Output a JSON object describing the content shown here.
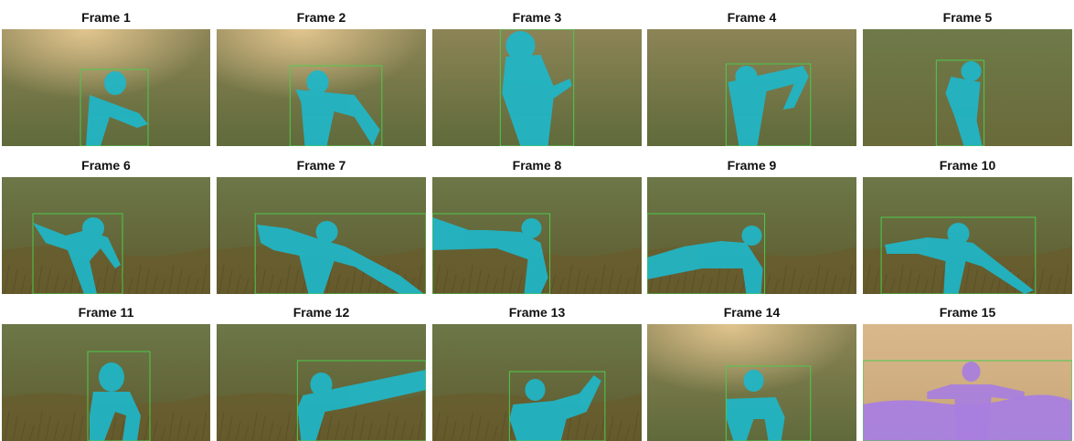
{
  "frames": [
    {
      "title": "Frame 1",
      "scene": "surface-sun",
      "mask": "cyan",
      "pose": "down-diag",
      "box_color": "#4ec94e"
    },
    {
      "title": "Frame 2",
      "scene": "surface-sun",
      "mask": "cyan",
      "pose": "down-arms",
      "box_color": "#4ec94e"
    },
    {
      "title": "Frame 3",
      "scene": "surface",
      "mask": "cyan",
      "pose": "overhead",
      "box_color": "#4ec94e"
    },
    {
      "title": "Frame 4",
      "scene": "surface",
      "mask": "cyan",
      "pose": "reach",
      "box_color": "#4ec94e"
    },
    {
      "title": "Frame 5",
      "scene": "mid",
      "mask": "cyan",
      "pose": "down-small",
      "box_color": "#4ec94e"
    },
    {
      "title": "Frame 6",
      "scene": "seabed",
      "mask": "cyan",
      "pose": "swim-left",
      "box_color": "#4ec94e"
    },
    {
      "title": "Frame 7",
      "scene": "seabed",
      "mask": "cyan",
      "pose": "swim-wide",
      "box_color": "#4ec94e"
    },
    {
      "title": "Frame 8",
      "scene": "seabed",
      "mask": "cyan",
      "pose": "swim-long",
      "box_color": "#4ec94e"
    },
    {
      "title": "Frame 9",
      "scene": "seabed",
      "mask": "cyan",
      "pose": "swim-long2",
      "box_color": "#4ec94e"
    },
    {
      "title": "Frame 10",
      "scene": "seabed",
      "mask": "cyan",
      "pose": "swim-front",
      "box_color": "#4ec94e"
    },
    {
      "title": "Frame 11",
      "scene": "seabed",
      "mask": "cyan",
      "pose": "face-front",
      "box_color": "#4ec94e"
    },
    {
      "title": "Frame 12",
      "scene": "seabed",
      "mask": "cyan",
      "pose": "arm-out",
      "box_color": "#4ec94e"
    },
    {
      "title": "Frame 13",
      "scene": "seabed",
      "mask": "cyan",
      "pose": "wave",
      "box_color": "#4ec94e"
    },
    {
      "title": "Frame 14",
      "scene": "surface-sun",
      "mask": "cyan",
      "pose": "rise",
      "box_color": "#4ec94e"
    },
    {
      "title": "Frame 15",
      "scene": "above",
      "mask": "purple",
      "pose": "head-out",
      "box_color": "#4ec94e"
    }
  ],
  "colors": {
    "mask_cyan": "#1fb7c9",
    "mask_purple": "#a87fe0",
    "water_top": "#8c8456",
    "water_bottom": "#5f6a3a",
    "seabed": "#6a5a2c",
    "sun": "#e6c891",
    "sky_above": "#d9b98c"
  }
}
